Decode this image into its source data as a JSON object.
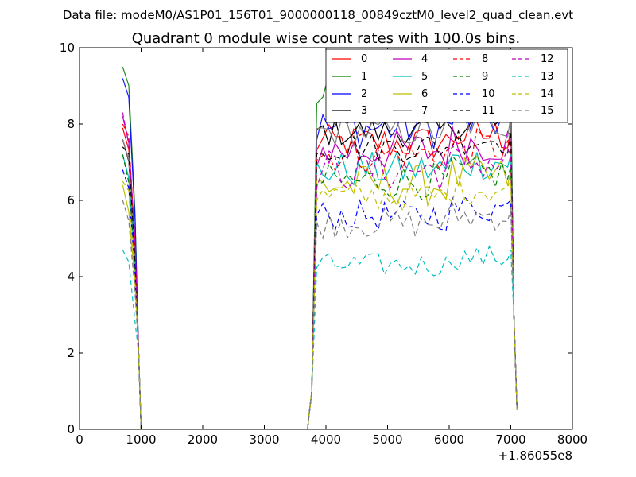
{
  "figure": {
    "suptitle": "Data file: modeM0/AS1P01_156T01_9000000118_00849cztM0_level2_quad_clean.evt"
  },
  "chart_data": {
    "type": "line",
    "title": "Quadrant 0 module wise count rates with 100.0s bins.",
    "xlabel": "",
    "ylabel": "",
    "xlim": [
      0,
      8000
    ],
    "ylim": [
      0,
      10
    ],
    "x_offset_label": "+1.86055e8",
    "x_ticks": [
      0,
      1000,
      2000,
      3000,
      4000,
      5000,
      6000,
      7000,
      8000
    ],
    "y_ticks": [
      0,
      2,
      4,
      6,
      8,
      10
    ],
    "grid": false,
    "legend_position": "top-right",
    "legend_columns": 4,
    "segments": [
      {
        "x_start": 700,
        "x_end": 1000
      },
      {
        "x_start": 3700,
        "x_end": 7100
      }
    ],
    "series": [
      {
        "name": "0",
        "color": "#ff0000",
        "dash": "solid",
        "level": 7.5,
        "drop": 0.6,
        "start": 7.9
      },
      {
        "name": "1",
        "color": "#008000",
        "dash": "solid",
        "level": 8.7,
        "drop": 0.8,
        "start": 9.5
      },
      {
        "name": "2",
        "color": "#0000ff",
        "dash": "solid",
        "level": 7.9,
        "drop": 0.7,
        "start": 9.2
      },
      {
        "name": "3",
        "color": "#000000",
        "dash": "solid",
        "level": 7.8,
        "drop": 0.5,
        "start": 7.6
      },
      {
        "name": "4",
        "color": "#bf00bf",
        "dash": "solid",
        "level": 7.3,
        "drop": 0.7,
        "start": 8.2
      },
      {
        "name": "5",
        "color": "#00bfbf",
        "dash": "solid",
        "level": 6.8,
        "drop": 0.6,
        "start": 7.2
      },
      {
        "name": "6",
        "color": "#bfbf00",
        "dash": "solid",
        "level": 6.4,
        "drop": 0.7,
        "start": 6.4
      },
      {
        "name": "7",
        "color": "#7f7f7f",
        "dash": "solid",
        "level": 7.8,
        "drop": 0.5,
        "start": 7.6
      },
      {
        "name": "8",
        "color": "#ff0000",
        "dash": "dashed",
        "level": 7.2,
        "drop": 0.6,
        "start": 8.0
      },
      {
        "name": "9",
        "color": "#008000",
        "dash": "dashed",
        "level": 6.5,
        "drop": 0.6,
        "start": 7.2
      },
      {
        "name": "10",
        "color": "#0000ff",
        "dash": "dashed",
        "level": 5.6,
        "drop": 0.5,
        "start": 6.8
      },
      {
        "name": "11",
        "color": "#000000",
        "dash": "dashed",
        "level": 7.4,
        "drop": 0.5,
        "start": 7.4
      },
      {
        "name": "12",
        "color": "#bf00bf",
        "dash": "dashed",
        "level": 6.8,
        "drop": 0.7,
        "start": 8.3
      },
      {
        "name": "13",
        "color": "#00bfbf",
        "dash": "dashed",
        "level": 4.3,
        "drop": 0.4,
        "start": 4.7
      },
      {
        "name": "14",
        "color": "#bfbf00",
        "dash": "dashed",
        "level": 6.1,
        "drop": 0.5,
        "start": 6.5
      },
      {
        "name": "15",
        "color": "#7f7f7f",
        "dash": "dashed",
        "level": 5.4,
        "drop": 0.5,
        "start": 6.0
      }
    ]
  }
}
